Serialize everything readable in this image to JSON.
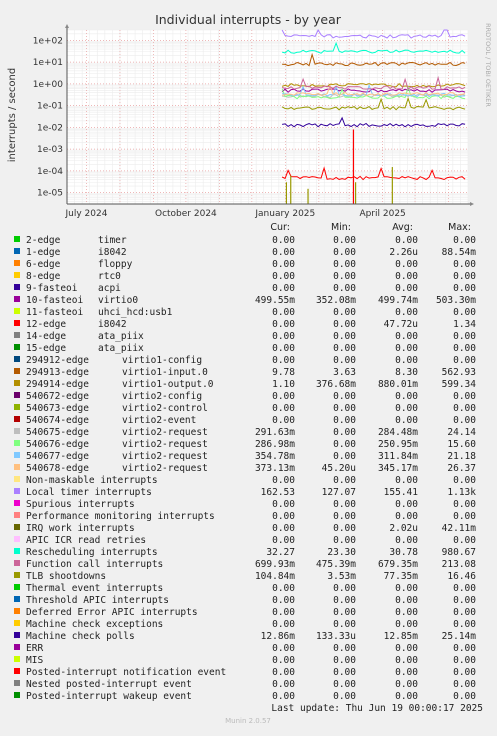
{
  "chart_data": {
    "type": "line",
    "title": "Individual interrupts - by year",
    "ylabel": "interrupts / second",
    "side_label": "RRDTOOL / TOBI OETIKER",
    "y_scale": "log",
    "ylim": [
      3e-06,
      300
    ],
    "y_ticks": [
      {
        "value": 100,
        "label": "1e+02"
      },
      {
        "value": 10,
        "label": "1e+01"
      },
      {
        "value": 1,
        "label": "1e+00"
      },
      {
        "value": 0.1,
        "label": "1e-01"
      },
      {
        "value": 0.01,
        "label": "1e-02"
      },
      {
        "value": 0.001,
        "label": "1e-03"
      },
      {
        "value": 0.0001,
        "label": "1e-04"
      },
      {
        "value": 1e-05,
        "label": "1e-05"
      }
    ],
    "x_range": [
      "2024-06-13",
      "2025-06-19"
    ],
    "x_ticks": [
      {
        "date": "2024-07-01",
        "label": "July 2024"
      },
      {
        "date": "2024-10-01",
        "label": "October 2024"
      },
      {
        "date": "2025-01-01",
        "label": "January 2025"
      },
      {
        "date": "2025-04-01",
        "label": "April 2025"
      }
    ],
    "data_start": "2024-12-29",
    "grid": true,
    "columns": [
      "Cur:",
      "Min:",
      "Avg:",
      "Max:"
    ],
    "series": [
      {
        "name": "2-edge",
        "desc": "timer",
        "color": "#00cc00",
        "cur": "0.00",
        "min": "0.00",
        "avg": "0.00",
        "max": "0.00",
        "level": 0
      },
      {
        "name": "1-edge",
        "desc": "i8042",
        "color": "#0066b3",
        "cur": "0.00",
        "min": "0.00",
        "avg": "2.26u",
        "max": "88.54m",
        "level": 2.26e-06
      },
      {
        "name": "6-edge",
        "desc": "floppy",
        "color": "#ff8000",
        "cur": "0.00",
        "min": "0.00",
        "avg": "0.00",
        "max": "0.00",
        "level": 0
      },
      {
        "name": "8-edge",
        "desc": "rtc0",
        "color": "#ffcc00",
        "cur": "0.00",
        "min": "0.00",
        "avg": "0.00",
        "max": "0.00",
        "level": 0
      },
      {
        "name": "9-fasteoi",
        "desc": "acpi",
        "color": "#330099",
        "cur": "0.00",
        "min": "0.00",
        "avg": "0.00",
        "max": "0.00",
        "level": 0
      },
      {
        "name": "10-fasteoi",
        "desc": "virtio0",
        "color": "#990099",
        "cur": "499.55m",
        "min": "352.08m",
        "avg": "499.74m",
        "max": "503.30m",
        "level": 0.4997
      },
      {
        "name": "11-fasteoi",
        "desc": "uhci_hcd:usb1",
        "color": "#ccff00",
        "cur": "0.00",
        "min": "0.00",
        "avg": "0.00",
        "max": "0.00",
        "level": 0
      },
      {
        "name": "12-edge",
        "desc": "i8042",
        "color": "#ff0000",
        "cur": "0.00",
        "min": "0.00",
        "avg": "47.72u",
        "max": "1.34",
        "level": 4.77e-05
      },
      {
        "name": "14-edge",
        "desc": "ata_piix",
        "color": "#808080",
        "cur": "0.00",
        "min": "0.00",
        "avg": "0.00",
        "max": "0.00",
        "level": 0
      },
      {
        "name": "15-edge",
        "desc": "ata_piix",
        "color": "#008f00",
        "cur": "0.00",
        "min": "0.00",
        "avg": "0.00",
        "max": "0.00",
        "level": 0
      },
      {
        "name": "294912-edge",
        "desc": "virtio1-config",
        "color": "#00487d",
        "cur": "0.00",
        "min": "0.00",
        "avg": "0.00",
        "max": "0.00",
        "level": 0
      },
      {
        "name": "294913-edge",
        "desc": "virtio1-input.0",
        "color": "#b35a00",
        "cur": "9.78",
        "min": "3.63",
        "avg": "8.30",
        "max": "562.93",
        "level": 8.3
      },
      {
        "name": "294914-edge",
        "desc": "virtio1-output.0",
        "color": "#b38f00",
        "cur": "1.10",
        "min": "376.68m",
        "avg": "880.01m",
        "max": "599.34",
        "level": 0.88
      },
      {
        "name": "540672-edge",
        "desc": "virtio2-config",
        "color": "#6b006b",
        "cur": "0.00",
        "min": "0.00",
        "avg": "0.00",
        "max": "0.00",
        "level": 0
      },
      {
        "name": "540673-edge",
        "desc": "virtio2-control",
        "color": "#8fb300",
        "cur": "0.00",
        "min": "0.00",
        "avg": "0.00",
        "max": "0.00",
        "level": 0
      },
      {
        "name": "540674-edge",
        "desc": "virtio2-event",
        "color": "#b30000",
        "cur": "0.00",
        "min": "0.00",
        "avg": "0.00",
        "max": "0.00",
        "level": 0
      },
      {
        "name": "540675-edge",
        "desc": "virtio2-request",
        "color": "#bebebe",
        "cur": "291.63m",
        "min": "0.00",
        "avg": "284.48m",
        "max": "24.14",
        "level": 0.2845
      },
      {
        "name": "540676-edge",
        "desc": "virtio2-request",
        "color": "#80ff80",
        "cur": "286.98m",
        "min": "0.00",
        "avg": "250.95m",
        "max": "15.60",
        "level": 0.251
      },
      {
        "name": "540677-edge",
        "desc": "virtio2-request",
        "color": "#80c9ff",
        "cur": "354.78m",
        "min": "0.00",
        "avg": "311.84m",
        "max": "21.18",
        "level": 0.3118
      },
      {
        "name": "540678-edge",
        "desc": "virtio2-request",
        "color": "#ffc080",
        "cur": "373.13m",
        "min": "45.20u",
        "avg": "345.17m",
        "max": "26.37",
        "level": 0.3452
      },
      {
        "name": "Non-maskable interrupts",
        "desc": "",
        "color": "#ffe680",
        "cur": "0.00",
        "min": "0.00",
        "avg": "0.00",
        "max": "0.00",
        "level": 0
      },
      {
        "name": "Local timer interrupts",
        "desc": "",
        "color": "#aa80ff",
        "cur": "162.53",
        "min": "127.07",
        "avg": "155.41",
        "max": "1.13k",
        "level": 155.41
      },
      {
        "name": "Spurious interrupts",
        "desc": "",
        "color": "#ee00cc",
        "cur": "0.00",
        "min": "0.00",
        "avg": "0.00",
        "max": "0.00",
        "level": 0
      },
      {
        "name": "Performance monitoring interrupts",
        "desc": "",
        "color": "#ff8080",
        "cur": "0.00",
        "min": "0.00",
        "avg": "0.00",
        "max": "0.00",
        "level": 0
      },
      {
        "name": "IRQ work interrupts",
        "desc": "",
        "color": "#666600",
        "cur": "0.00",
        "min": "0.00",
        "avg": "2.02u",
        "max": "42.11m",
        "level": 2.02e-06
      },
      {
        "name": "APIC ICR read retries",
        "desc": "",
        "color": "#ffbfff",
        "cur": "0.00",
        "min": "0.00",
        "avg": "0.00",
        "max": "0.00",
        "level": 0
      },
      {
        "name": "Rescheduling interrupts",
        "desc": "",
        "color": "#00ffcc",
        "cur": "32.27",
        "min": "23.30",
        "avg": "30.78",
        "max": "980.67",
        "level": 30.78
      },
      {
        "name": "Function call interrupts",
        "desc": "",
        "color": "#cc6699",
        "cur": "699.93m",
        "min": "475.39m",
        "avg": "679.35m",
        "max": "213.08",
        "level": 0.6794
      },
      {
        "name": "TLB shootdowns",
        "desc": "",
        "color": "#999900",
        "cur": "104.84m",
        "min": "3.53m",
        "avg": "77.35m",
        "max": "16.46",
        "level": 0.07735
      },
      {
        "name": "Thermal event interrupts",
        "desc": "",
        "color": "#00cc00",
        "cur": "0.00",
        "min": "0.00",
        "avg": "0.00",
        "max": "0.00",
        "level": 0
      },
      {
        "name": "Threshold APIC interrupts",
        "desc": "",
        "color": "#0066b3",
        "cur": "0.00",
        "min": "0.00",
        "avg": "0.00",
        "max": "0.00",
        "level": 0
      },
      {
        "name": "Deferred Error APIC interrupts",
        "desc": "",
        "color": "#ff8000",
        "cur": "0.00",
        "min": "0.00",
        "avg": "0.00",
        "max": "0.00",
        "level": 0
      },
      {
        "name": "Machine check exceptions",
        "desc": "",
        "color": "#ffcc00",
        "cur": "0.00",
        "min": "0.00",
        "avg": "0.00",
        "max": "0.00",
        "level": 0
      },
      {
        "name": "Machine check polls",
        "desc": "",
        "color": "#330099",
        "cur": "12.86m",
        "min": "133.33u",
        "avg": "12.85m",
        "max": "25.14m",
        "level": 0.01285
      },
      {
        "name": "ERR",
        "desc": "",
        "color": "#990099",
        "cur": "0.00",
        "min": "0.00",
        "avg": "0.00",
        "max": "0.00",
        "level": 0
      },
      {
        "name": "MIS",
        "desc": "",
        "color": "#ccff00",
        "cur": "0.00",
        "min": "0.00",
        "avg": "0.00",
        "max": "0.00",
        "level": 0
      },
      {
        "name": "Posted-interrupt notification event",
        "desc": "",
        "color": "#ff0000",
        "cur": "0.00",
        "min": "0.00",
        "avg": "0.00",
        "max": "0.00",
        "level": 0
      },
      {
        "name": "Nested posted-interrupt event",
        "desc": "",
        "color": "#808080",
        "cur": "0.00",
        "min": "0.00",
        "avg": "0.00",
        "max": "0.00",
        "level": 0
      },
      {
        "name": "Posted-interrupt wakeup event",
        "desc": "",
        "color": "#008f00",
        "cur": "0.00",
        "min": "0.00",
        "avg": "0.00",
        "max": "0.00",
        "level": 0
      }
    ],
    "spikes": [
      {
        "date": "2025-01-02",
        "value": 3e-05,
        "color": "#999900"
      },
      {
        "date": "2025-01-06",
        "value": 6e-05,
        "color": "#999900"
      },
      {
        "date": "2025-01-22",
        "value": 1.5e-05,
        "color": "#999900"
      },
      {
        "date": "2025-03-05",
        "value": 0.008,
        "color": "#ff0000"
      },
      {
        "date": "2025-03-07",
        "value": 3e-05,
        "color": "#999900"
      },
      {
        "date": "2025-04-10",
        "value": 0.00015,
        "color": "#999900"
      }
    ]
  },
  "footer": {
    "last_update": "Last update: Thu Jun 19 00:00:17 2025",
    "munin": "Munin 2.0.57"
  }
}
